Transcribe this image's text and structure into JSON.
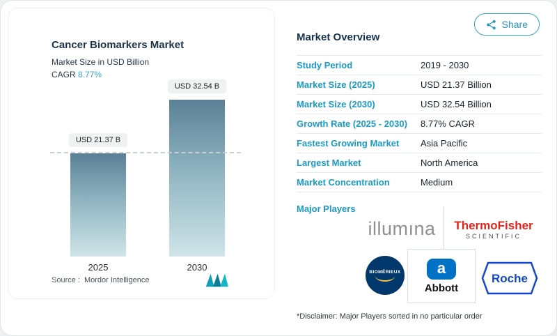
{
  "colors": {
    "accent": "#1b9bc4",
    "bar_gradient_top": "#5b8096",
    "bar_gradient_bottom": "#cfe4e8",
    "thermo_red": "#e1251b",
    "biomerieux_navy": "#00386c",
    "abbott_blue": "#0072c6",
    "roche_blue": "#1446c8"
  },
  "share_button": {
    "label": "Share"
  },
  "chart": {
    "title": "Cancer Biomarkers Market",
    "subtitle": "Market Size in USD Billion",
    "cagr_label": "CAGR",
    "cagr_value": "8.77%",
    "source_label": "Source :",
    "source_value": "Mordor Intelligence"
  },
  "chart_data": {
    "type": "bar",
    "title": "Cancer Biomarkers Market",
    "ylabel": "Market Size in USD Billion",
    "categories": [
      "2025",
      "2030"
    ],
    "values": [
      21.37,
      32.54
    ],
    "value_labels": [
      "USD 21.37 B",
      "USD 32.54 B"
    ],
    "unit": "USD Billion",
    "ylim": [
      0,
      32.54
    ],
    "grid": false,
    "legend": "none",
    "reference_line": {
      "value": 21.37,
      "style": "dashed"
    }
  },
  "overview": {
    "title": "Market Overview",
    "rows": [
      {
        "label": "Study Period",
        "value": "2019 - 2030"
      },
      {
        "label": "Market Size (2025)",
        "value": "USD 21.37 Billion"
      },
      {
        "label": "Market Size (2030)",
        "value": "USD 32.54 Billion"
      },
      {
        "label": "Growth Rate (2025 - 2030)",
        "value": "8.77% CAGR"
      },
      {
        "label": "Fastest Growing Market",
        "value": "Asia Pacific"
      },
      {
        "label": "Largest Market",
        "value": "North America"
      },
      {
        "label": "Market Concentration",
        "value": "Medium"
      }
    ],
    "major_players_label": "Major Players",
    "players": {
      "illumina": "illumına",
      "thermo_line1": "ThermoFisher",
      "thermo_line2": "SCIENTIFIC",
      "biomerieux": "BIOMÉRIEUX",
      "abbott_symbol": "a",
      "abbott": "Abbott",
      "roche": "Roche"
    },
    "disclaimer": "*Disclaimer: Major Players sorted in no particular order"
  }
}
